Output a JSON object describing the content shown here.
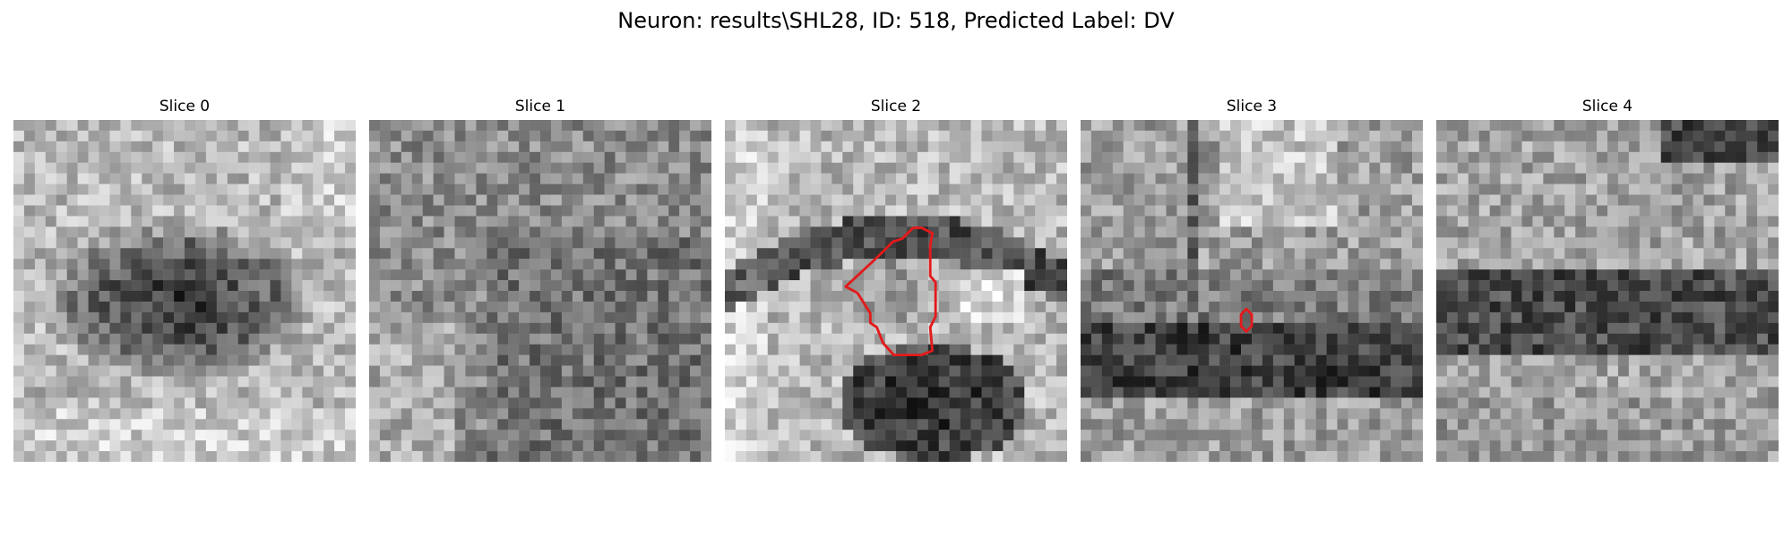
{
  "figure": {
    "title": "Neuron: results\\SHL28, ID: 518, Predicted Label: DV"
  },
  "slices": [
    {
      "title": "Slice 0",
      "pattern": "dark-blob",
      "seed": 11
    },
    {
      "title": "Slice 1",
      "pattern": "noise",
      "seed": 23
    },
    {
      "title": "Slice 2",
      "pattern": "curved-band",
      "seed": 37
    },
    {
      "title": "Slice 3",
      "pattern": "horizontal-band",
      "seed": 41
    },
    {
      "title": "Slice 4",
      "pattern": "horizontal-band-noisy",
      "seed": 53
    }
  ],
  "contour_color": "#e31a1c"
}
